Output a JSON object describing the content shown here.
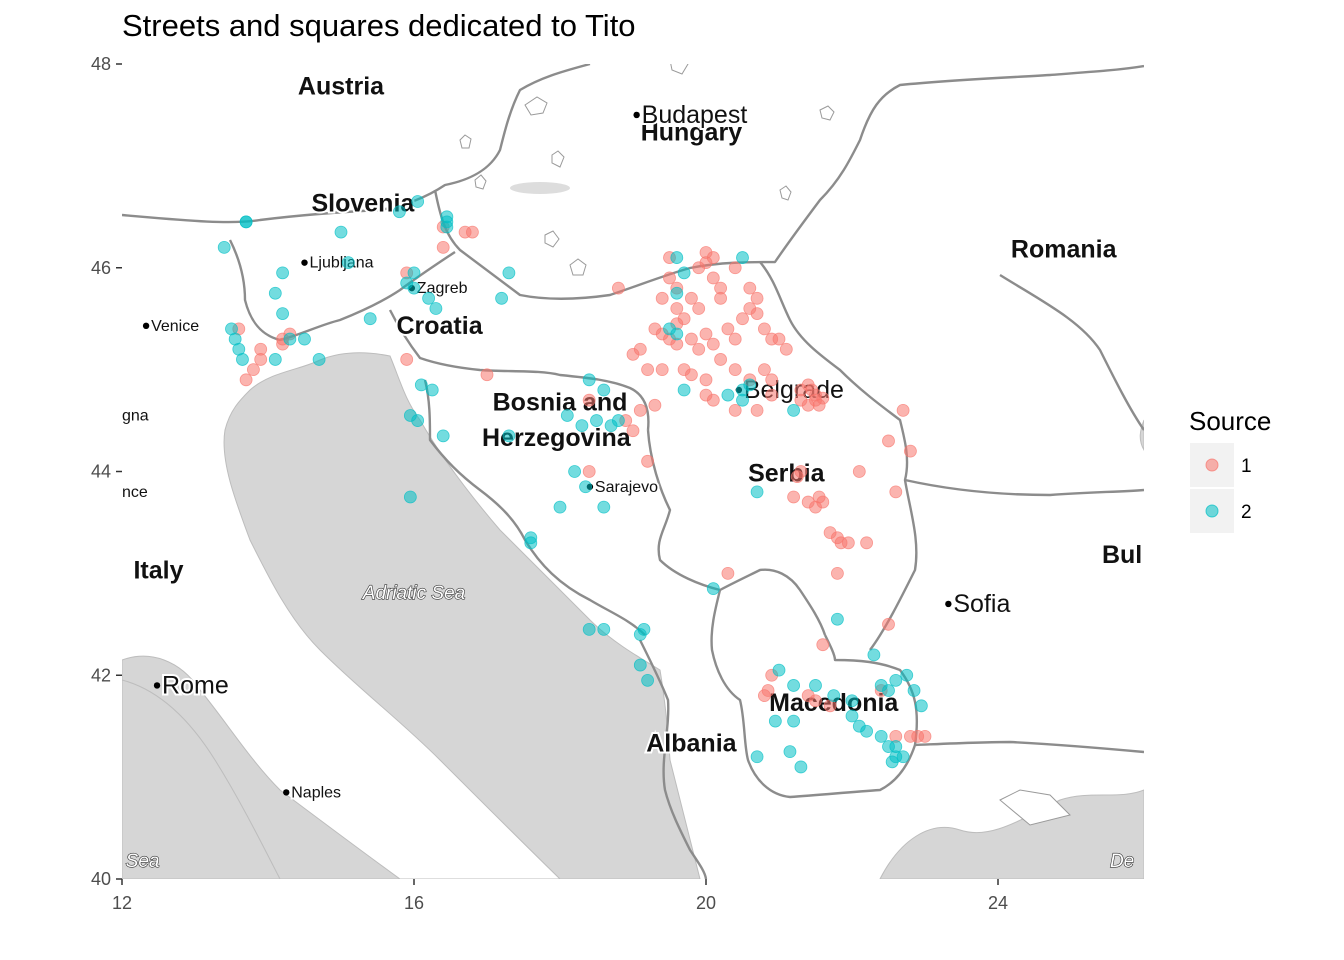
{
  "title": "Streets and squares dedicated to Tito",
  "chart_data": {
    "type": "scatter",
    "title": "Streets and squares dedicated to Tito",
    "xlim": [
      12,
      26
    ],
    "ylim": [
      40,
      48
    ],
    "x_ticks": [
      "12",
      "16",
      "20",
      "24"
    ],
    "y_ticks": [
      "40",
      "42",
      "44",
      "46",
      "48"
    ],
    "legend": {
      "title": "Source",
      "position": "right",
      "entries": [
        {
          "label": "1",
          "color": "#F8766D"
        },
        {
          "label": "2",
          "color": "#00BFC4"
        }
      ]
    },
    "series": [
      {
        "name": "1",
        "color": "#F8766D",
        "points": [
          [
            16.4,
            46.4
          ],
          [
            16.4,
            46.2
          ],
          [
            16.7,
            46.35
          ],
          [
            16.8,
            46.35
          ],
          [
            15.9,
            45.95
          ],
          [
            14.2,
            45.3
          ],
          [
            14.3,
            45.35
          ],
          [
            14.2,
            45.25
          ],
          [
            13.9,
            45.2
          ],
          [
            13.9,
            45.1
          ],
          [
            13.6,
            45.4
          ],
          [
            13.8,
            45.0
          ],
          [
            13.7,
            44.9
          ],
          [
            15.9,
            45.1
          ],
          [
            17.0,
            44.95
          ],
          [
            18.4,
            44.7
          ],
          [
            18.9,
            44.5
          ],
          [
            19.1,
            44.6
          ],
          [
            19.3,
            44.65
          ],
          [
            19.0,
            44.4
          ],
          [
            18.4,
            44.0
          ],
          [
            19.2,
            44.1
          ],
          [
            18.8,
            45.8
          ],
          [
            19.5,
            45.9
          ],
          [
            19.6,
            45.8
          ],
          [
            19.9,
            46.0
          ],
          [
            20.0,
            46.05
          ],
          [
            19.4,
            45.7
          ],
          [
            19.6,
            45.6
          ],
          [
            19.7,
            45.5
          ],
          [
            19.8,
            45.7
          ],
          [
            20.1,
            45.9
          ],
          [
            20.2,
            45.8
          ],
          [
            19.3,
            45.4
          ],
          [
            19.4,
            45.35
          ],
          [
            19.5,
            45.3
          ],
          [
            19.6,
            45.25
          ],
          [
            19.8,
            45.3
          ],
          [
            19.9,
            45.2
          ],
          [
            20.0,
            45.35
          ],
          [
            20.1,
            45.25
          ],
          [
            20.3,
            45.4
          ],
          [
            20.4,
            45.3
          ],
          [
            20.5,
            45.5
          ],
          [
            20.6,
            45.6
          ],
          [
            20.7,
            45.55
          ],
          [
            20.8,
            45.4
          ],
          [
            20.9,
            45.3
          ],
          [
            19.0,
            45.15
          ],
          [
            19.1,
            45.2
          ],
          [
            19.2,
            45.0
          ],
          [
            19.4,
            45.0
          ],
          [
            19.7,
            45.0
          ],
          [
            19.8,
            44.95
          ],
          [
            20.0,
            44.9
          ],
          [
            20.2,
            45.1
          ],
          [
            20.4,
            45.0
          ],
          [
            20.6,
            44.9
          ],
          [
            20.8,
            45.0
          ],
          [
            20.9,
            44.9
          ],
          [
            20.6,
            45.8
          ],
          [
            20.7,
            45.7
          ],
          [
            21.0,
            45.3
          ],
          [
            21.1,
            45.2
          ],
          [
            19.5,
            46.1
          ],
          [
            20.0,
            46.15
          ],
          [
            20.1,
            46.1
          ],
          [
            20.4,
            46.0
          ],
          [
            20.2,
            45.7
          ],
          [
            19.9,
            45.6
          ],
          [
            19.6,
            45.45
          ],
          [
            21.3,
            44.8
          ],
          [
            21.4,
            44.85
          ],
          [
            21.45,
            44.8
          ],
          [
            21.5,
            44.75
          ],
          [
            21.5,
            44.7
          ],
          [
            21.55,
            44.65
          ],
          [
            21.6,
            44.72
          ],
          [
            21.4,
            44.65
          ],
          [
            21.3,
            44.7
          ],
          [
            20.9,
            44.75
          ],
          [
            20.7,
            44.6
          ],
          [
            20.4,
            44.6
          ],
          [
            20.1,
            44.7
          ],
          [
            20.0,
            44.75
          ],
          [
            21.3,
            44.0
          ],
          [
            21.25,
            43.95
          ],
          [
            21.2,
            43.75
          ],
          [
            21.4,
            43.7
          ],
          [
            21.5,
            43.65
          ],
          [
            21.6,
            43.7
          ],
          [
            21.55,
            43.75
          ],
          [
            21.7,
            43.4
          ],
          [
            21.8,
            43.35
          ],
          [
            21.85,
            43.3
          ],
          [
            21.95,
            43.3
          ],
          [
            22.2,
            43.3
          ],
          [
            22.1,
            44.0
          ],
          [
            22.5,
            44.3
          ],
          [
            22.7,
            44.6
          ],
          [
            22.8,
            44.2
          ],
          [
            22.6,
            43.8
          ],
          [
            21.8,
            43.0
          ],
          [
            22.5,
            42.5
          ],
          [
            21.6,
            42.3
          ],
          [
            20.3,
            43.0
          ],
          [
            20.9,
            42.0
          ],
          [
            20.85,
            41.85
          ],
          [
            20.8,
            41.8
          ],
          [
            21.4,
            41.8
          ],
          [
            21.5,
            41.75
          ],
          [
            21.7,
            41.7
          ],
          [
            22.4,
            41.85
          ],
          [
            22.8,
            41.4
          ],
          [
            22.9,
            41.4
          ],
          [
            23.0,
            41.4
          ],
          [
            22.6,
            41.4
          ]
        ]
      },
      {
        "name": "2",
        "color": "#00BFC4",
        "points": [
          [
            13.7,
            46.45
          ],
          [
            13.7,
            46.45
          ],
          [
            15.0,
            46.35
          ],
          [
            15.1,
            46.05
          ],
          [
            16.05,
            46.65
          ],
          [
            16.45,
            46.5
          ],
          [
            16.45,
            46.45
          ],
          [
            16.45,
            46.4
          ],
          [
            15.8,
            46.55
          ],
          [
            13.4,
            46.2
          ],
          [
            14.2,
            45.95
          ],
          [
            14.1,
            45.75
          ],
          [
            14.2,
            45.55
          ],
          [
            13.5,
            45.4
          ],
          [
            13.55,
            45.3
          ],
          [
            13.6,
            45.2
          ],
          [
            13.65,
            45.1
          ],
          [
            14.1,
            45.1
          ],
          [
            14.3,
            45.3
          ],
          [
            14.5,
            45.3
          ],
          [
            14.7,
            45.1
          ],
          [
            15.4,
            45.5
          ],
          [
            15.9,
            45.85
          ],
          [
            16.0,
            45.8
          ],
          [
            16.2,
            45.7
          ],
          [
            16.3,
            45.6
          ],
          [
            16.0,
            45.95
          ],
          [
            17.3,
            45.95
          ],
          [
            17.2,
            45.7
          ],
          [
            16.1,
            44.85
          ],
          [
            16.25,
            44.8
          ],
          [
            16.05,
            44.5
          ],
          [
            15.95,
            44.55
          ],
          [
            16.4,
            44.35
          ],
          [
            17.3,
            44.35
          ],
          [
            18.1,
            44.55
          ],
          [
            18.3,
            44.45
          ],
          [
            18.5,
            44.5
          ],
          [
            18.7,
            44.45
          ],
          [
            18.8,
            44.5
          ],
          [
            18.4,
            44.9
          ],
          [
            18.6,
            44.8
          ],
          [
            18.2,
            44.0
          ],
          [
            18.35,
            43.85
          ],
          [
            18.0,
            43.65
          ],
          [
            17.6,
            43.35
          ],
          [
            17.6,
            43.3
          ],
          [
            18.6,
            43.65
          ],
          [
            15.95,
            43.75
          ],
          [
            18.4,
            42.45
          ],
          [
            18.6,
            42.45
          ],
          [
            19.1,
            42.4
          ],
          [
            19.15,
            42.45
          ],
          [
            19.1,
            42.1
          ],
          [
            19.2,
            41.95
          ],
          [
            19.6,
            46.1
          ],
          [
            20.5,
            46.1
          ],
          [
            19.7,
            45.95
          ],
          [
            19.6,
            45.75
          ],
          [
            19.5,
            45.4
          ],
          [
            19.6,
            45.35
          ],
          [
            20.3,
            44.75
          ],
          [
            20.5,
            44.8
          ],
          [
            20.6,
            44.85
          ],
          [
            20.5,
            44.7
          ],
          [
            21.2,
            44.6
          ],
          [
            19.7,
            44.8
          ],
          [
            20.7,
            43.8
          ],
          [
            20.1,
            42.85
          ],
          [
            21.8,
            42.55
          ],
          [
            21.0,
            42.05
          ],
          [
            21.2,
            41.9
          ],
          [
            21.5,
            41.9
          ],
          [
            21.75,
            41.8
          ],
          [
            22.0,
            41.75
          ],
          [
            22.3,
            42.2
          ],
          [
            22.4,
            41.9
          ],
          [
            22.5,
            41.85
          ],
          [
            22.6,
            41.95
          ],
          [
            22.75,
            42.0
          ],
          [
            22.85,
            41.85
          ],
          [
            22.95,
            41.7
          ],
          [
            22.0,
            41.6
          ],
          [
            22.1,
            41.5
          ],
          [
            22.2,
            41.45
          ],
          [
            22.4,
            41.4
          ],
          [
            22.6,
            41.3
          ],
          [
            22.5,
            41.3
          ],
          [
            22.6,
            41.2
          ],
          [
            22.7,
            41.2
          ],
          [
            22.55,
            41.15
          ],
          [
            20.7,
            41.2
          ],
          [
            20.95,
            41.55
          ],
          [
            21.2,
            41.55
          ],
          [
            21.15,
            41.25
          ],
          [
            21.3,
            41.1
          ]
        ]
      }
    ]
  },
  "map_labels": {
    "countries": [
      {
        "name": "Austria",
        "lon": 15.0,
        "lat": 47.7
      },
      {
        "name": "Hungary",
        "lon": 19.8,
        "lat": 47.25
      },
      {
        "name": "Slovenia",
        "lon": 15.3,
        "lat": 46.55
      },
      {
        "name": "Romania",
        "lon": 24.9,
        "lat": 46.1
      },
      {
        "name": "Croatia",
        "lon": 16.35,
        "lat": 45.35
      },
      {
        "name": "Bosnia and",
        "lon": 18.0,
        "lat": 44.6
      },
      {
        "name": "Herzegovina",
        "lon": 17.95,
        "lat": 44.25
      },
      {
        "name": "Serbia",
        "lon": 21.1,
        "lat": 43.9
      },
      {
        "name": "Italy",
        "lon": 12.5,
        "lat": 42.95
      },
      {
        "name": "Bul",
        "lon": 25.7,
        "lat": 43.1
      },
      {
        "name": "Macedonia",
        "lon": 21.75,
        "lat": 41.65
      },
      {
        "name": "Albania",
        "lon": 19.8,
        "lat": 41.25
      }
    ],
    "cities": [
      {
        "name": "Budapest",
        "lon": 19.05,
        "lat": 47.5,
        "small": false
      },
      {
        "name": "Ljubljana",
        "lon": 14.5,
        "lat": 46.05,
        "small": true
      },
      {
        "name": "Zagreb",
        "lon": 15.97,
        "lat": 45.8,
        "small": true
      },
      {
        "name": "Venice",
        "lon": 12.33,
        "lat": 45.43,
        "small": true
      },
      {
        "name": "Belgrade",
        "lon": 20.45,
        "lat": 44.8,
        "small": false
      },
      {
        "name": "Sarajevo",
        "lon": 18.41,
        "lat": 43.85,
        "small": true
      },
      {
        "name": "Sofia",
        "lon": 23.32,
        "lat": 42.7,
        "small": false
      },
      {
        "name": "Rome",
        "lon": 12.48,
        "lat": 41.9,
        "small": false
      },
      {
        "name": "Naples",
        "lon": 14.25,
        "lat": 40.85,
        "small": true
      }
    ],
    "partial": [
      {
        "name": "gna",
        "lon": 12.0,
        "lat": 44.5
      },
      {
        "name": "nce",
        "lon": 12.0,
        "lat": 43.75
      }
    ],
    "seas": [
      {
        "name": "Adriatic Sea",
        "lon": 16.0,
        "lat": 42.75
      },
      {
        "name": "nian Sea",
        "lon": 12.0,
        "lat": 40.12
      },
      {
        "name": "De",
        "lon": 25.7,
        "lat": 40.12
      }
    ]
  },
  "colors": {
    "sea": "#d6d6d6",
    "land": "#ffffff",
    "border": "#8c8c8c",
    "point_alpha": 0.55
  }
}
